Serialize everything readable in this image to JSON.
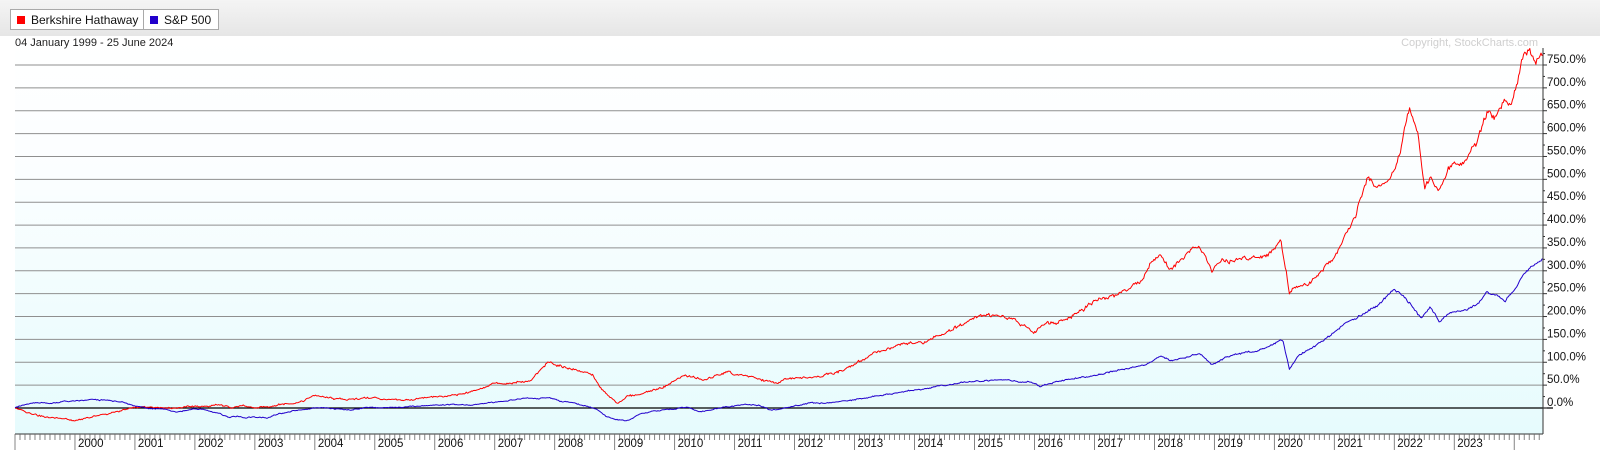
{
  "legend": [
    {
      "label": "Berkshire Hathaway",
      "color": "#ff0000"
    },
    {
      "label": "S&P 500",
      "color": "#2200cc"
    }
  ],
  "date_range": "04 January 1999 - 25 June 2024",
  "copyright": "Copyright, StockCharts.com",
  "colors": {
    "plot_bg_top": "#ffffff",
    "plot_bg_bottom": "#e6fbfd",
    "grid": "#8f8f8f",
    "zero_line": "#000000"
  },
  "chart_data": {
    "type": "line",
    "x_unit": "year",
    "xlim": [
      1999.0,
      2024.48
    ],
    "ylim": [
      -30,
      790
    ],
    "y_ticks": [
      0,
      50,
      100,
      150,
      200,
      250,
      300,
      350,
      400,
      450,
      500,
      550,
      600,
      650,
      700,
      750
    ],
    "y_tick_labels": [
      "0.0%",
      "50.0%",
      "100.0%",
      "150.0%",
      "200.0%",
      "250.0%",
      "300.0%",
      "350.0%",
      "400.0%",
      "450.0%",
      "500.0%",
      "550.0%",
      "600.0%",
      "650.0%",
      "700.0%",
      "750.0%"
    ],
    "x_ticks": [
      2000,
      2001,
      2002,
      2003,
      2004,
      2005,
      2006,
      2007,
      2008,
      2009,
      2010,
      2011,
      2012,
      2013,
      2014,
      2015,
      2016,
      2017,
      2018,
      2019,
      2020,
      2021,
      2022,
      2023
    ],
    "x_tick_labels": [
      "2000",
      "2001",
      "2002",
      "2003",
      "2004",
      "2005",
      "2006",
      "2007",
      "2008",
      "2009",
      "2010",
      "2011",
      "2012",
      "2013",
      "2014",
      "2015",
      "2016",
      "2017",
      "2018",
      "2019",
      "2020",
      "2021",
      "2022",
      "2023"
    ],
    "grid": true,
    "legend_position": "top-left",
    "series": [
      {
        "name": "Berkshire Hathaway",
        "color": "#ff0000",
        "points": [
          [
            1999.0,
            0
          ],
          [
            1999.1,
            -5
          ],
          [
            1999.25,
            -12
          ],
          [
            1999.4,
            -18
          ],
          [
            1999.55,
            -20
          ],
          [
            1999.7,
            -22
          ],
          [
            1999.85,
            -25
          ],
          [
            2000.0,
            -28
          ],
          [
            2000.15,
            -24
          ],
          [
            2000.3,
            -18
          ],
          [
            2000.5,
            -14
          ],
          [
            2000.7,
            -8
          ],
          [
            2000.85,
            -3
          ],
          [
            2001.0,
            0
          ],
          [
            2001.2,
            2
          ],
          [
            2001.4,
            3
          ],
          [
            2001.6,
            0
          ],
          [
            2001.8,
            2
          ],
          [
            2002.0,
            4
          ],
          [
            2002.2,
            3
          ],
          [
            2002.4,
            6
          ],
          [
            2002.6,
            2
          ],
          [
            2002.8,
            4
          ],
          [
            2003.0,
            0
          ],
          [
            2003.2,
            2
          ],
          [
            2003.4,
            8
          ],
          [
            2003.6,
            10
          ],
          [
            2003.8,
            15
          ],
          [
            2004.0,
            28
          ],
          [
            2004.2,
            22
          ],
          [
            2004.4,
            20
          ],
          [
            2004.6,
            18
          ],
          [
            2004.8,
            22
          ],
          [
            2005.0,
            22
          ],
          [
            2005.2,
            18
          ],
          [
            2005.4,
            16
          ],
          [
            2005.6,
            18
          ],
          [
            2005.8,
            22
          ],
          [
            2006.0,
            24
          ],
          [
            2006.2,
            26
          ],
          [
            2006.4,
            28
          ],
          [
            2006.6,
            35
          ],
          [
            2006.8,
            45
          ],
          [
            2007.0,
            55
          ],
          [
            2007.2,
            52
          ],
          [
            2007.4,
            58
          ],
          [
            2007.6,
            60
          ],
          [
            2007.75,
            80
          ],
          [
            2007.9,
            100
          ],
          [
            2008.0,
            95
          ],
          [
            2008.15,
            90
          ],
          [
            2008.3,
            85
          ],
          [
            2008.45,
            80
          ],
          [
            2008.55,
            75
          ],
          [
            2008.65,
            70
          ],
          [
            2008.75,
            45
          ],
          [
            2008.9,
            25
          ],
          [
            2009.05,
            10
          ],
          [
            2009.2,
            25
          ],
          [
            2009.4,
            30
          ],
          [
            2009.6,
            38
          ],
          [
            2009.8,
            45
          ],
          [
            2010.0,
            60
          ],
          [
            2010.15,
            70
          ],
          [
            2010.3,
            68
          ],
          [
            2010.5,
            60
          ],
          [
            2010.7,
            72
          ],
          [
            2010.9,
            78
          ],
          [
            2011.0,
            72
          ],
          [
            2011.15,
            70
          ],
          [
            2011.3,
            68
          ],
          [
            2011.5,
            60
          ],
          [
            2011.7,
            55
          ],
          [
            2011.85,
            62
          ],
          [
            2012.0,
            65
          ],
          [
            2012.2,
            68
          ],
          [
            2012.4,
            70
          ],
          [
            2012.6,
            75
          ],
          [
            2012.8,
            82
          ],
          [
            2013.0,
            95
          ],
          [
            2013.2,
            110
          ],
          [
            2013.4,
            125
          ],
          [
            2013.6,
            130
          ],
          [
            2013.8,
            140
          ],
          [
            2014.0,
            140
          ],
          [
            2014.2,
            145
          ],
          [
            2014.4,
            160
          ],
          [
            2014.6,
            170
          ],
          [
            2014.8,
            185
          ],
          [
            2015.0,
            200
          ],
          [
            2015.2,
            205
          ],
          [
            2015.4,
            200
          ],
          [
            2015.6,
            195
          ],
          [
            2015.8,
            180
          ],
          [
            2016.0,
            165
          ],
          [
            2016.15,
            185
          ],
          [
            2016.4,
            190
          ],
          [
            2016.6,
            200
          ],
          [
            2016.8,
            215
          ],
          [
            2017.0,
            235
          ],
          [
            2017.2,
            240
          ],
          [
            2017.4,
            250
          ],
          [
            2017.6,
            265
          ],
          [
            2017.8,
            280
          ],
          [
            2017.95,
            320
          ],
          [
            2018.1,
            340
          ],
          [
            2018.25,
            300
          ],
          [
            2018.5,
            330
          ],
          [
            2018.75,
            360
          ],
          [
            2018.95,
            300
          ],
          [
            2019.1,
            320
          ],
          [
            2019.3,
            320
          ],
          [
            2019.5,
            330
          ],
          [
            2019.7,
            325
          ],
          [
            2019.9,
            335
          ],
          [
            2020.0,
            350
          ],
          [
            2020.1,
            370
          ],
          [
            2020.2,
            300
          ],
          [
            2020.25,
            250
          ],
          [
            2020.4,
            270
          ],
          [
            2020.6,
            275
          ],
          [
            2020.8,
            300
          ],
          [
            2021.0,
            330
          ],
          [
            2021.2,
            380
          ],
          [
            2021.35,
            420
          ],
          [
            2021.45,
            460
          ],
          [
            2021.55,
            500
          ],
          [
            2021.7,
            480
          ],
          [
            2021.85,
            490
          ],
          [
            2022.0,
            520
          ],
          [
            2022.1,
            560
          ],
          [
            2022.25,
            660
          ],
          [
            2022.4,
            600
          ],
          [
            2022.5,
            480
          ],
          [
            2022.6,
            500
          ],
          [
            2022.75,
            470
          ],
          [
            2022.9,
            520
          ],
          [
            2023.0,
            540
          ],
          [
            2023.1,
            530
          ],
          [
            2023.3,
            560
          ],
          [
            2023.45,
            610
          ],
          [
            2023.55,
            650
          ],
          [
            2023.65,
            630
          ],
          [
            2023.8,
            660
          ],
          [
            2023.95,
            670
          ],
          [
            2024.05,
            700
          ],
          [
            2024.15,
            770
          ],
          [
            2024.25,
            790
          ],
          [
            2024.35,
            760
          ],
          [
            2024.48,
            770
          ]
        ]
      },
      {
        "name": "S&P 500",
        "color": "#2200cc",
        "points": [
          [
            1999.0,
            2
          ],
          [
            1999.2,
            8
          ],
          [
            1999.4,
            12
          ],
          [
            1999.6,
            10
          ],
          [
            1999.8,
            14
          ],
          [
            2000.0,
            15
          ],
          [
            2000.3,
            18
          ],
          [
            2000.6,
            16
          ],
          [
            2000.8,
            12
          ],
          [
            2001.0,
            5
          ],
          [
            2001.2,
            0
          ],
          [
            2001.5,
            -2
          ],
          [
            2001.7,
            -10
          ],
          [
            2001.9,
            -4
          ],
          [
            2002.0,
            -2
          ],
          [
            2002.2,
            -5
          ],
          [
            2002.4,
            -12
          ],
          [
            2002.55,
            -20
          ],
          [
            2002.7,
            -18
          ],
          [
            2002.85,
            -22
          ],
          [
            2003.0,
            -20
          ],
          [
            2003.2,
            -22
          ],
          [
            2003.4,
            -12
          ],
          [
            2003.6,
            -8
          ],
          [
            2003.8,
            -4
          ],
          [
            2004.0,
            0
          ],
          [
            2004.3,
            -2
          ],
          [
            2004.6,
            -4
          ],
          [
            2004.9,
            2
          ],
          [
            2005.2,
            0
          ],
          [
            2005.5,
            3
          ],
          [
            2005.8,
            5
          ],
          [
            2006.0,
            6
          ],
          [
            2006.3,
            8
          ],
          [
            2006.6,
            6
          ],
          [
            2006.9,
            12
          ],
          [
            2007.2,
            15
          ],
          [
            2007.5,
            22
          ],
          [
            2007.7,
            20
          ],
          [
            2007.9,
            24
          ],
          [
            2008.1,
            15
          ],
          [
            2008.3,
            12
          ],
          [
            2008.5,
            5
          ],
          [
            2008.7,
            -2
          ],
          [
            2008.85,
            -18
          ],
          [
            2009.0,
            -25
          ],
          [
            2009.2,
            -28
          ],
          [
            2009.4,
            -15
          ],
          [
            2009.6,
            -8
          ],
          [
            2009.8,
            -5
          ],
          [
            2010.0,
            -2
          ],
          [
            2010.2,
            2
          ],
          [
            2010.4,
            -8
          ],
          [
            2010.6,
            -4
          ],
          [
            2010.8,
            2
          ],
          [
            2011.0,
            5
          ],
          [
            2011.2,
            8
          ],
          [
            2011.4,
            6
          ],
          [
            2011.6,
            -5
          ],
          [
            2011.8,
            -2
          ],
          [
            2012.0,
            5
          ],
          [
            2012.3,
            12
          ],
          [
            2012.5,
            10
          ],
          [
            2012.8,
            15
          ],
          [
            2013.0,
            18
          ],
          [
            2013.3,
            25
          ],
          [
            2013.6,
            30
          ],
          [
            2013.9,
            38
          ],
          [
            2014.2,
            42
          ],
          [
            2014.5,
            50
          ],
          [
            2014.8,
            55
          ],
          [
            2015.0,
            58
          ],
          [
            2015.3,
            60
          ],
          [
            2015.6,
            62
          ],
          [
            2015.75,
            55
          ],
          [
            2015.9,
            58
          ],
          [
            2016.1,
            48
          ],
          [
            2016.4,
            58
          ],
          [
            2016.7,
            65
          ],
          [
            2016.9,
            68
          ],
          [
            2017.1,
            75
          ],
          [
            2017.4,
            82
          ],
          [
            2017.7,
            90
          ],
          [
            2017.95,
            100
          ],
          [
            2018.1,
            115
          ],
          [
            2018.25,
            105
          ],
          [
            2018.5,
            110
          ],
          [
            2018.75,
            120
          ],
          [
            2018.95,
            95
          ],
          [
            2019.1,
            105
          ],
          [
            2019.3,
            115
          ],
          [
            2019.5,
            120
          ],
          [
            2019.7,
            125
          ],
          [
            2019.9,
            135
          ],
          [
            2020.1,
            150
          ],
          [
            2020.15,
            145
          ],
          [
            2020.25,
            85
          ],
          [
            2020.4,
            115
          ],
          [
            2020.6,
            130
          ],
          [
            2020.8,
            145
          ],
          [
            2021.0,
            165
          ],
          [
            2021.2,
            185
          ],
          [
            2021.4,
            200
          ],
          [
            2021.6,
            215
          ],
          [
            2021.8,
            235
          ],
          [
            2022.0,
            260
          ],
          [
            2022.1,
            250
          ],
          [
            2022.3,
            225
          ],
          [
            2022.45,
            195
          ],
          [
            2022.6,
            220
          ],
          [
            2022.75,
            190
          ],
          [
            2022.9,
            205
          ],
          [
            2023.0,
            210
          ],
          [
            2023.2,
            215
          ],
          [
            2023.4,
            230
          ],
          [
            2023.55,
            255
          ],
          [
            2023.7,
            245
          ],
          [
            2023.85,
            235
          ],
          [
            2024.0,
            260
          ],
          [
            2024.15,
            290
          ],
          [
            2024.3,
            310
          ],
          [
            2024.48,
            325
          ]
        ]
      }
    ]
  }
}
